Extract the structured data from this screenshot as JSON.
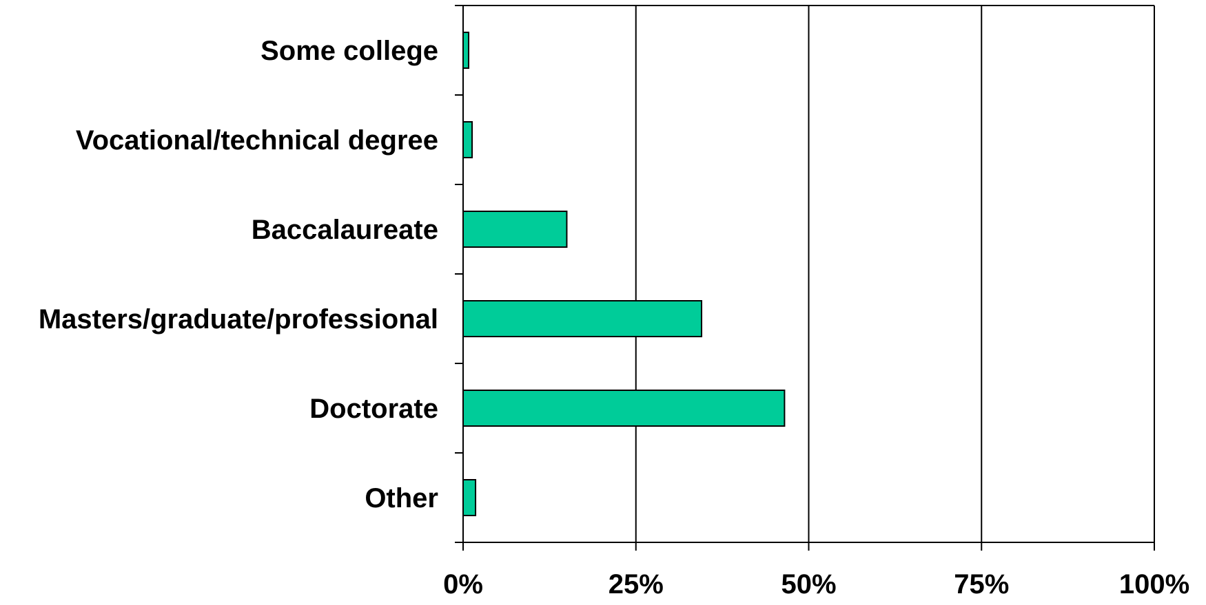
{
  "chart_data": {
    "type": "bar",
    "orientation": "horizontal",
    "categories": [
      "Some college",
      "Vocational/technical degree",
      "Baccalaureate",
      "Masters/graduate/professional",
      "Doctorate",
      "Other"
    ],
    "values": [
      0.8,
      1.3,
      15,
      34.5,
      46.5,
      1.8
    ],
    "value_unit": "%",
    "xlim": [
      0,
      100
    ],
    "xticks": [
      0,
      25,
      50,
      75,
      100
    ],
    "xtick_labels": [
      "0%",
      "25%",
      "50%",
      "75%",
      "100%"
    ],
    "title": "",
    "xlabel": "",
    "ylabel": "",
    "grid": "vertical",
    "legend": "none",
    "colors": {
      "bar_fill": "#00CC99",
      "bar_stroke": "#000000",
      "grid": "#000000",
      "text": "#000000"
    }
  }
}
